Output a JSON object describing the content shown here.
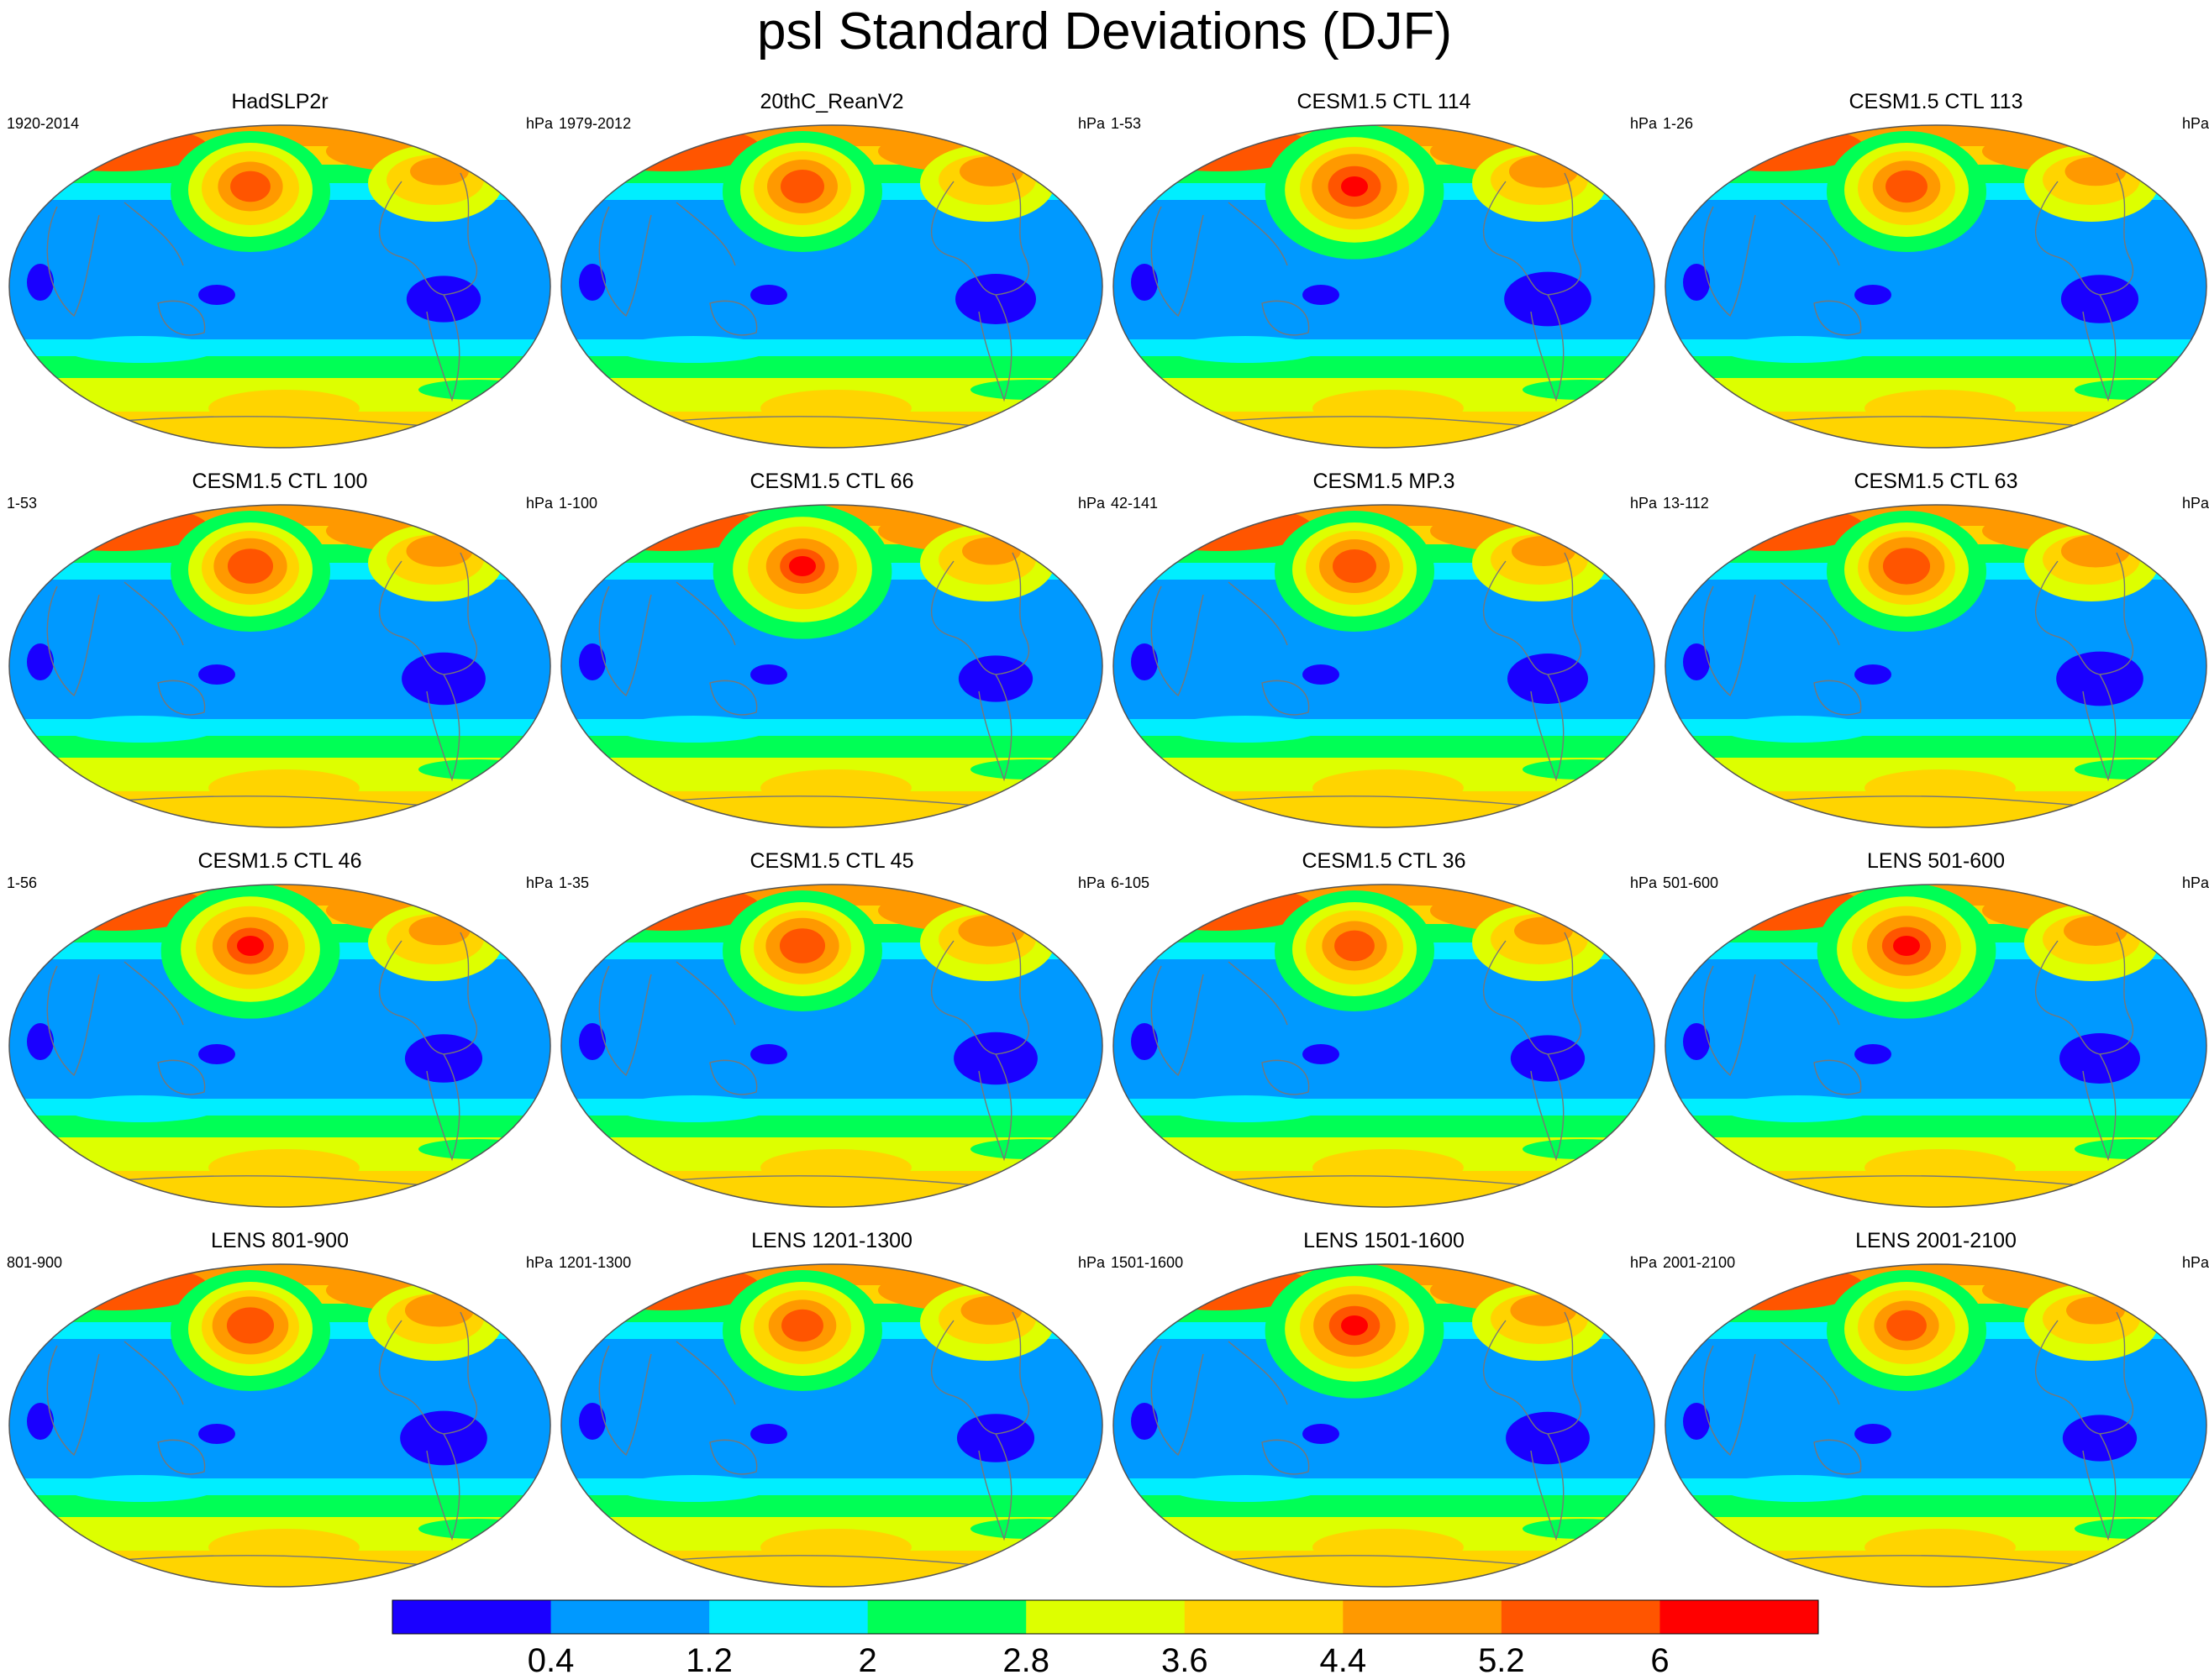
{
  "title": "psl Standard Deviations (DJF)",
  "panels": [
    {
      "title": "HadSLP2r",
      "left": "1920-2014",
      "right": "hPa"
    },
    {
      "title": "20thC_ReanV2",
      "left": "1979-2012",
      "right": "hPa"
    },
    {
      "title": "CESM1.5 CTL 114",
      "left": "1-53",
      "right": "hPa"
    },
    {
      "title": "CESM1.5 CTL 113",
      "left": "1-26",
      "right": "hPa"
    },
    {
      "title": "CESM1.5 CTL 100",
      "left": "1-53",
      "right": "hPa"
    },
    {
      "title": "CESM1.5 CTL 66",
      "left": "1-100",
      "right": "hPa"
    },
    {
      "title": "CESM1.5 MP.3",
      "left": "42-141",
      "right": "hPa"
    },
    {
      "title": "CESM1.5 CTL 63",
      "left": "13-112",
      "right": "hPa"
    },
    {
      "title": "CESM1.5 CTL 46",
      "left": "1-56",
      "right": "hPa"
    },
    {
      "title": "CESM1.5 CTL 45",
      "left": "1-35",
      "right": "hPa"
    },
    {
      "title": "CESM1.5 CTL 36",
      "left": "6-105",
      "right": "hPa"
    },
    {
      "title": "LENS 501-600",
      "left": "501-600",
      "right": "hPa"
    },
    {
      "title": "LENS 801-900",
      "left": "801-900",
      "right": "hPa"
    },
    {
      "title": "LENS 1201-1300",
      "left": "1201-1300",
      "right": "hPa"
    },
    {
      "title": "LENS 1501-1600",
      "left": "1501-1600",
      "right": "hPa"
    },
    {
      "title": "LENS 2001-2100",
      "left": "2001-2100",
      "right": "hPa"
    }
  ],
  "colorbar": {
    "labels": [
      "0.4",
      "1.2",
      "2",
      "2.8",
      "3.6",
      "4.4",
      "5.2",
      "6"
    ],
    "colors": [
      "#1a00ff",
      "#0099ff",
      "#00eeff",
      "#00ff55",
      "#ddff00",
      "#ffd400",
      "#ff9900",
      "#ff5500",
      "#ff0000"
    ]
  }
}
